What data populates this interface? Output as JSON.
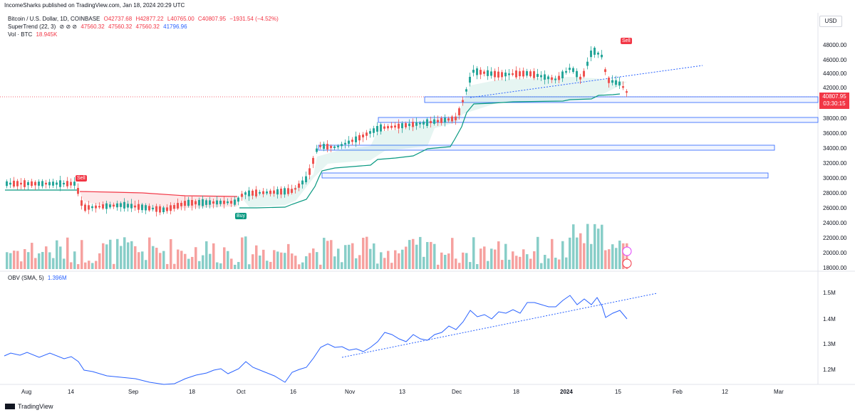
{
  "header": "IncomeSharks published on TradingView.com, Jan 18, 2024 20:29 UTC",
  "legend": {
    "title": "Bitcoin / U.S. Dollar, 1D, COINBASE",
    "o": "O42737.68",
    "h": "H42877.22",
    "l": "L40765.00",
    "c": "C40807.95",
    "chg": "−1931.54 (−4.52%)",
    "st_label": "SuperTrend (22, 3)",
    "st_icons": "⊘ ⊘ ⊘",
    "st_v1": "47560.32",
    "st_v2": "47560.32",
    "st_v3": "47560.32",
    "st_v4": "41796.96",
    "vol_label": "Vol · BTC",
    "vol_value": "18.945K"
  },
  "currency": "USD",
  "price_tag": {
    "price": "40807.95",
    "countdown": "03:30:15"
  },
  "y_axis": [
    "48000.00",
    "46000.00",
    "44000.00",
    "42000.00",
    "38000.00",
    "36000.00",
    "34000.00",
    "32000.00",
    "30000.00",
    "28000.00",
    "26000.00",
    "24000.00",
    "22000.00",
    "20000.00",
    "18000.00"
  ],
  "obv": {
    "label": "OBV (SMA, 5)",
    "value": "1.396M",
    "y_axis": [
      "1.5M",
      "1.4M",
      "1.3M",
      "1.2M"
    ]
  },
  "x_axis": [
    "Aug",
    "14",
    "Sep",
    "18",
    "Oct",
    "16",
    "Nov",
    "13",
    "Dec",
    "18",
    "2024",
    "15",
    "Feb",
    "12",
    "Mar"
  ],
  "signals": {
    "sell": "Sell",
    "buy": "Buy"
  },
  "footer": "TradingView",
  "colors": {
    "up": "#26a69a",
    "down": "#ef5350",
    "obv": "#2962ff",
    "zone": "#2962ff"
  }
}
